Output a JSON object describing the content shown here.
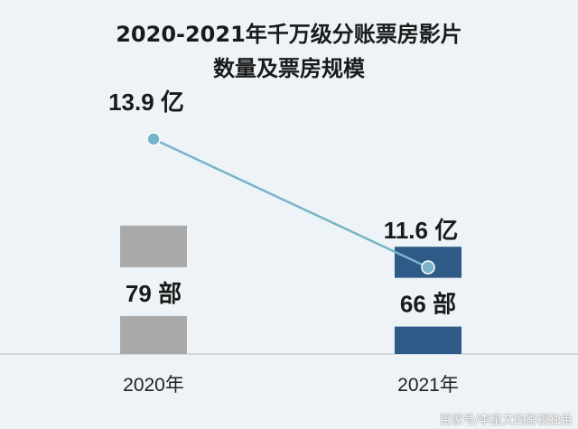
{
  "chart_data": {
    "type": "bar",
    "title_lines": [
      "2020-2021年千万级分账票房影片",
      "数量及票房规模"
    ],
    "categories": [
      "2020年",
      "2021年"
    ],
    "series": [
      {
        "kind": "bar",
        "values": [
          79,
          66
        ],
        "value_labels": [
          "79 部",
          "66 部"
        ],
        "colors": [
          "#a9a9a9",
          "#2e5a87"
        ]
      },
      {
        "kind": "line",
        "values": [
          13.9,
          11.6
        ],
        "value_labels": [
          "13.9 亿",
          "11.6 亿"
        ],
        "color": "#78b4c8"
      }
    ],
    "grid": false,
    "legend": "none"
  },
  "watermark": "百家号/李星文的影视独舌"
}
